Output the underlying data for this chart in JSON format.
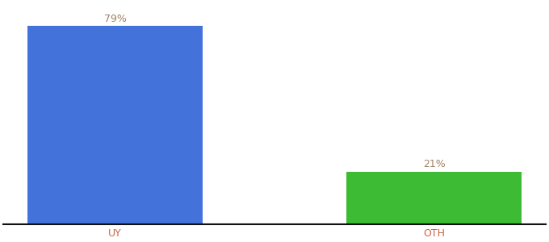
{
  "categories": [
    "UY",
    "OTH"
  ],
  "values": [
    79,
    21
  ],
  "bar_colors": [
    "#4472db",
    "#3dbb35"
  ],
  "label_colors": [
    "#a08060",
    "#a08060"
  ],
  "label_texts": [
    "79%",
    "21%"
  ],
  "background_color": "#ffffff",
  "bar_width": 0.55,
  "ylim": [
    0,
    88
  ],
  "xlabel_fontsize": 9,
  "label_fontsize": 9,
  "axis_line_color": "#111111",
  "tick_color": "#cc6644",
  "xlim": [
    -0.35,
    1.35
  ]
}
